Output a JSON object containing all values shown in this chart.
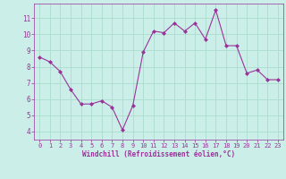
{
  "x": [
    0,
    1,
    2,
    3,
    4,
    5,
    6,
    7,
    8,
    9,
    10,
    11,
    12,
    13,
    14,
    15,
    16,
    17,
    18,
    19,
    20,
    21,
    22,
    23
  ],
  "y": [
    8.6,
    8.3,
    7.7,
    6.6,
    5.7,
    5.7,
    5.9,
    5.5,
    4.1,
    5.6,
    8.9,
    10.2,
    10.1,
    10.7,
    10.2,
    10.7,
    9.7,
    11.5,
    9.3,
    9.3,
    7.6,
    7.8,
    7.2,
    7.2
  ],
  "line_color": "#993399",
  "marker": "D",
  "marker_size": 2,
  "bg_color": "#cceee8",
  "grid_color": "#aaddcc",
  "xlabel": "Windchill (Refroidissement éolien,°C)",
  "xlabel_color": "#993399",
  "tick_color": "#993399",
  "xlim": [
    -0.5,
    23.5
  ],
  "ylim": [
    3.5,
    11.9
  ],
  "yticks": [
    4,
    5,
    6,
    7,
    8,
    9,
    10,
    11
  ],
  "xticks": [
    0,
    1,
    2,
    3,
    4,
    5,
    6,
    7,
    8,
    9,
    10,
    11,
    12,
    13,
    14,
    15,
    16,
    17,
    18,
    19,
    20,
    21,
    22,
    23
  ]
}
